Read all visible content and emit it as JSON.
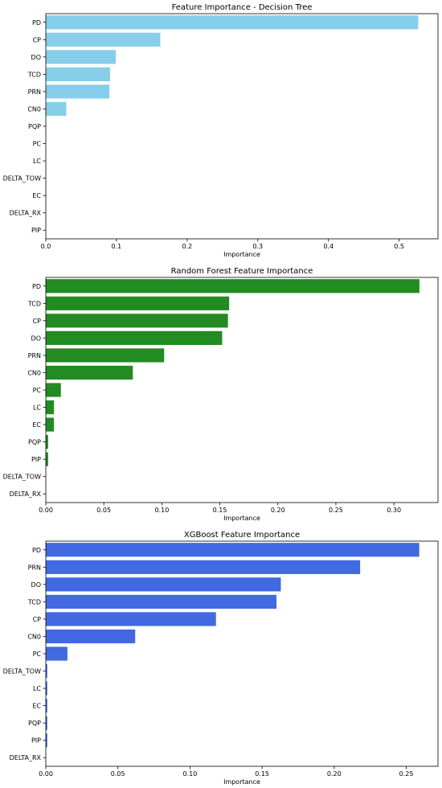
{
  "chart_data": [
    {
      "type": "bar",
      "orientation": "horizontal",
      "title": "Feature Importance - Decision Tree",
      "xlabel": "Importance",
      "ylabel": "",
      "xlim": [
        0,
        0.555
      ],
      "xticks": [
        "0.0",
        "0.1",
        "0.2",
        "0.3",
        "0.4",
        "0.5"
      ],
      "xtick_values": [
        0,
        0.1,
        0.2,
        0.3,
        0.4,
        0.5
      ],
      "categories": [
        "PD",
        "CP",
        "DO",
        "TCD",
        "PRN",
        "CN0",
        "PQP",
        "PC",
        "LC",
        "DELTA_TOW",
        "EC",
        "DELTA_RX",
        "PIP"
      ],
      "values": [
        0.527,
        0.162,
        0.099,
        0.091,
        0.09,
        0.029,
        0,
        0,
        0,
        0,
        0,
        0,
        0
      ],
      "color": "#87ceeb",
      "grid": false
    },
    {
      "type": "bar",
      "orientation": "horizontal",
      "title": "Random Forest Feature Importance",
      "xlabel": "Importance",
      "ylabel": "",
      "xlim": [
        0,
        0.338
      ],
      "xticks": [
        "0.00",
        "0.05",
        "0.10",
        "0.15",
        "0.20",
        "0.25",
        "0.30"
      ],
      "xtick_values": [
        0,
        0.05,
        0.1,
        0.15,
        0.2,
        0.25,
        0.3
      ],
      "categories": [
        "PD",
        "TCD",
        "CP",
        "DO",
        "PRN",
        "CN0",
        "PC",
        "LC",
        "EC",
        "PQP",
        "PIP",
        "DELTA_TOW",
        "DELTA_RX"
      ],
      "values": [
        0.322,
        0.158,
        0.157,
        0.152,
        0.102,
        0.075,
        0.013,
        0.007,
        0.007,
        0.002,
        0.002,
        0,
        0
      ],
      "color": "#228b22",
      "grid": false
    },
    {
      "type": "bar",
      "orientation": "horizontal",
      "title": "XGBoost Feature Importance",
      "xlabel": "Importance",
      "ylabel": "",
      "xlim": [
        0,
        0.272
      ],
      "xticks": [
        "0.00",
        "0.05",
        "0.10",
        "0.15",
        "0.20",
        "0.25"
      ],
      "xtick_values": [
        0,
        0.05,
        0.1,
        0.15,
        0.2,
        0.25
      ],
      "categories": [
        "PD",
        "PRN",
        "DO",
        "TCD",
        "CP",
        "CN0",
        "PC",
        "DELTA_TOW",
        "LC",
        "EC",
        "PQP",
        "PIP",
        "DELTA_RX"
      ],
      "values": [
        0.259,
        0.218,
        0.163,
        0.16,
        0.118,
        0.062,
        0.015,
        0.001,
        0.001,
        0.001,
        0.001,
        0.001,
        0
      ],
      "color": "#4169e1",
      "grid": false
    }
  ]
}
